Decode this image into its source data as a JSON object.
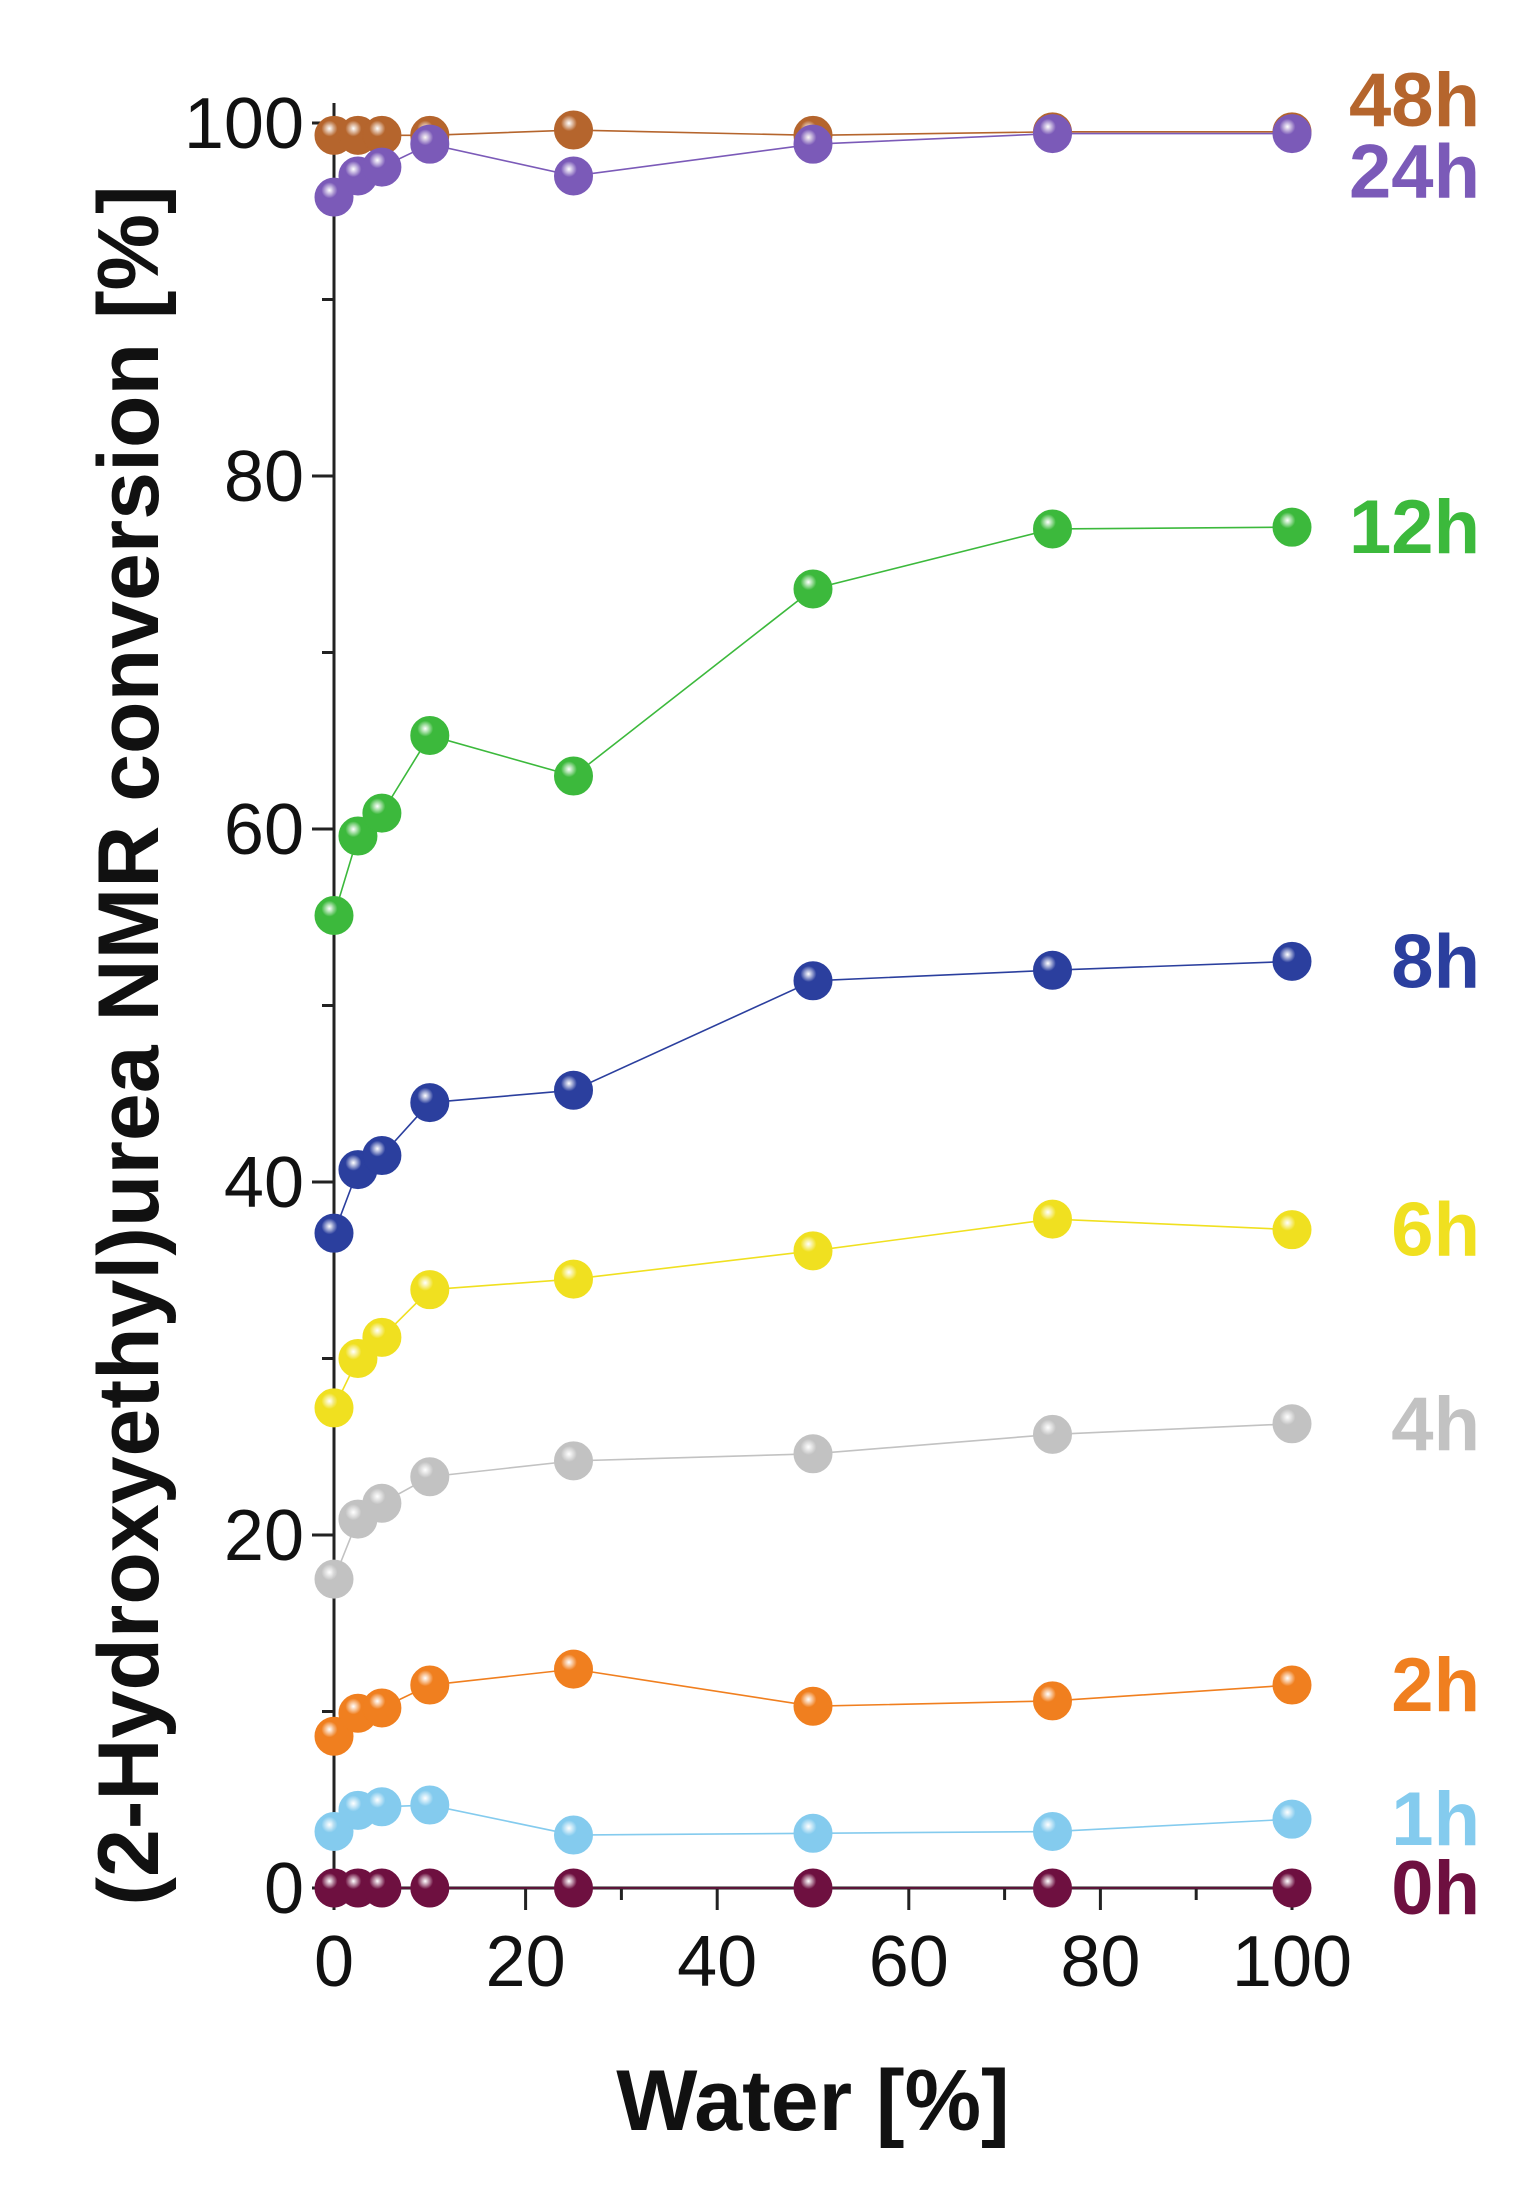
{
  "chart_data": {
    "type": "line",
    "title": "",
    "xlabel": "Water [%]",
    "ylabel": "(2-Hydroxyethyl)urea NMR conversion [%]",
    "xlim": [
      0,
      100
    ],
    "ylim": [
      0,
      100
    ],
    "x_ticks": [
      0,
      20,
      40,
      60,
      80,
      100
    ],
    "y_ticks": [
      0,
      20,
      40,
      60,
      80,
      100
    ],
    "grid": false,
    "legend": "inline labels at right end of each series",
    "x": [
      0,
      2.5,
      5,
      10,
      25,
      50,
      75,
      100
    ],
    "series": [
      {
        "name": "48h",
        "color": "#b5652d",
        "values": [
          99.3,
          99.3,
          99.3,
          99.3,
          99.6,
          99.3,
          99.5,
          99.5
        ]
      },
      {
        "name": "24h",
        "color": "#7b5ab8",
        "values": [
          95.8,
          97.0,
          97.5,
          98.8,
          97.0,
          98.8,
          99.4,
          99.4
        ]
      },
      {
        "name": "12h",
        "color": "#3cb93c",
        "values": [
          55.1,
          59.6,
          60.9,
          65.3,
          63.0,
          73.6,
          77.0,
          77.1
        ]
      },
      {
        "name": "8h",
        "color": "#2b3f9e",
        "values": [
          37.1,
          40.7,
          41.5,
          44.5,
          45.2,
          51.4,
          52.0,
          52.5
        ]
      },
      {
        "name": "6h",
        "color": "#f0e020",
        "values": [
          27.2,
          30.0,
          31.2,
          33.9,
          34.5,
          36.1,
          37.9,
          37.3
        ]
      },
      {
        "name": "4h",
        "color": "#c2c2c2",
        "values": [
          17.5,
          20.9,
          21.8,
          23.3,
          24.2,
          24.6,
          25.7,
          26.3
        ]
      },
      {
        "name": "2h",
        "color": "#f07f1f",
        "values": [
          8.6,
          9.9,
          10.2,
          11.5,
          12.4,
          10.3,
          10.6,
          11.5
        ]
      },
      {
        "name": "1h",
        "color": "#84cbee",
        "values": [
          3.2,
          4.4,
          4.6,
          4.7,
          3.0,
          3.1,
          3.2,
          3.9
        ]
      },
      {
        "name": "0h",
        "color": "#6e1040",
        "values": [
          0,
          0,
          0,
          0,
          0,
          0,
          0,
          0
        ]
      }
    ]
  }
}
